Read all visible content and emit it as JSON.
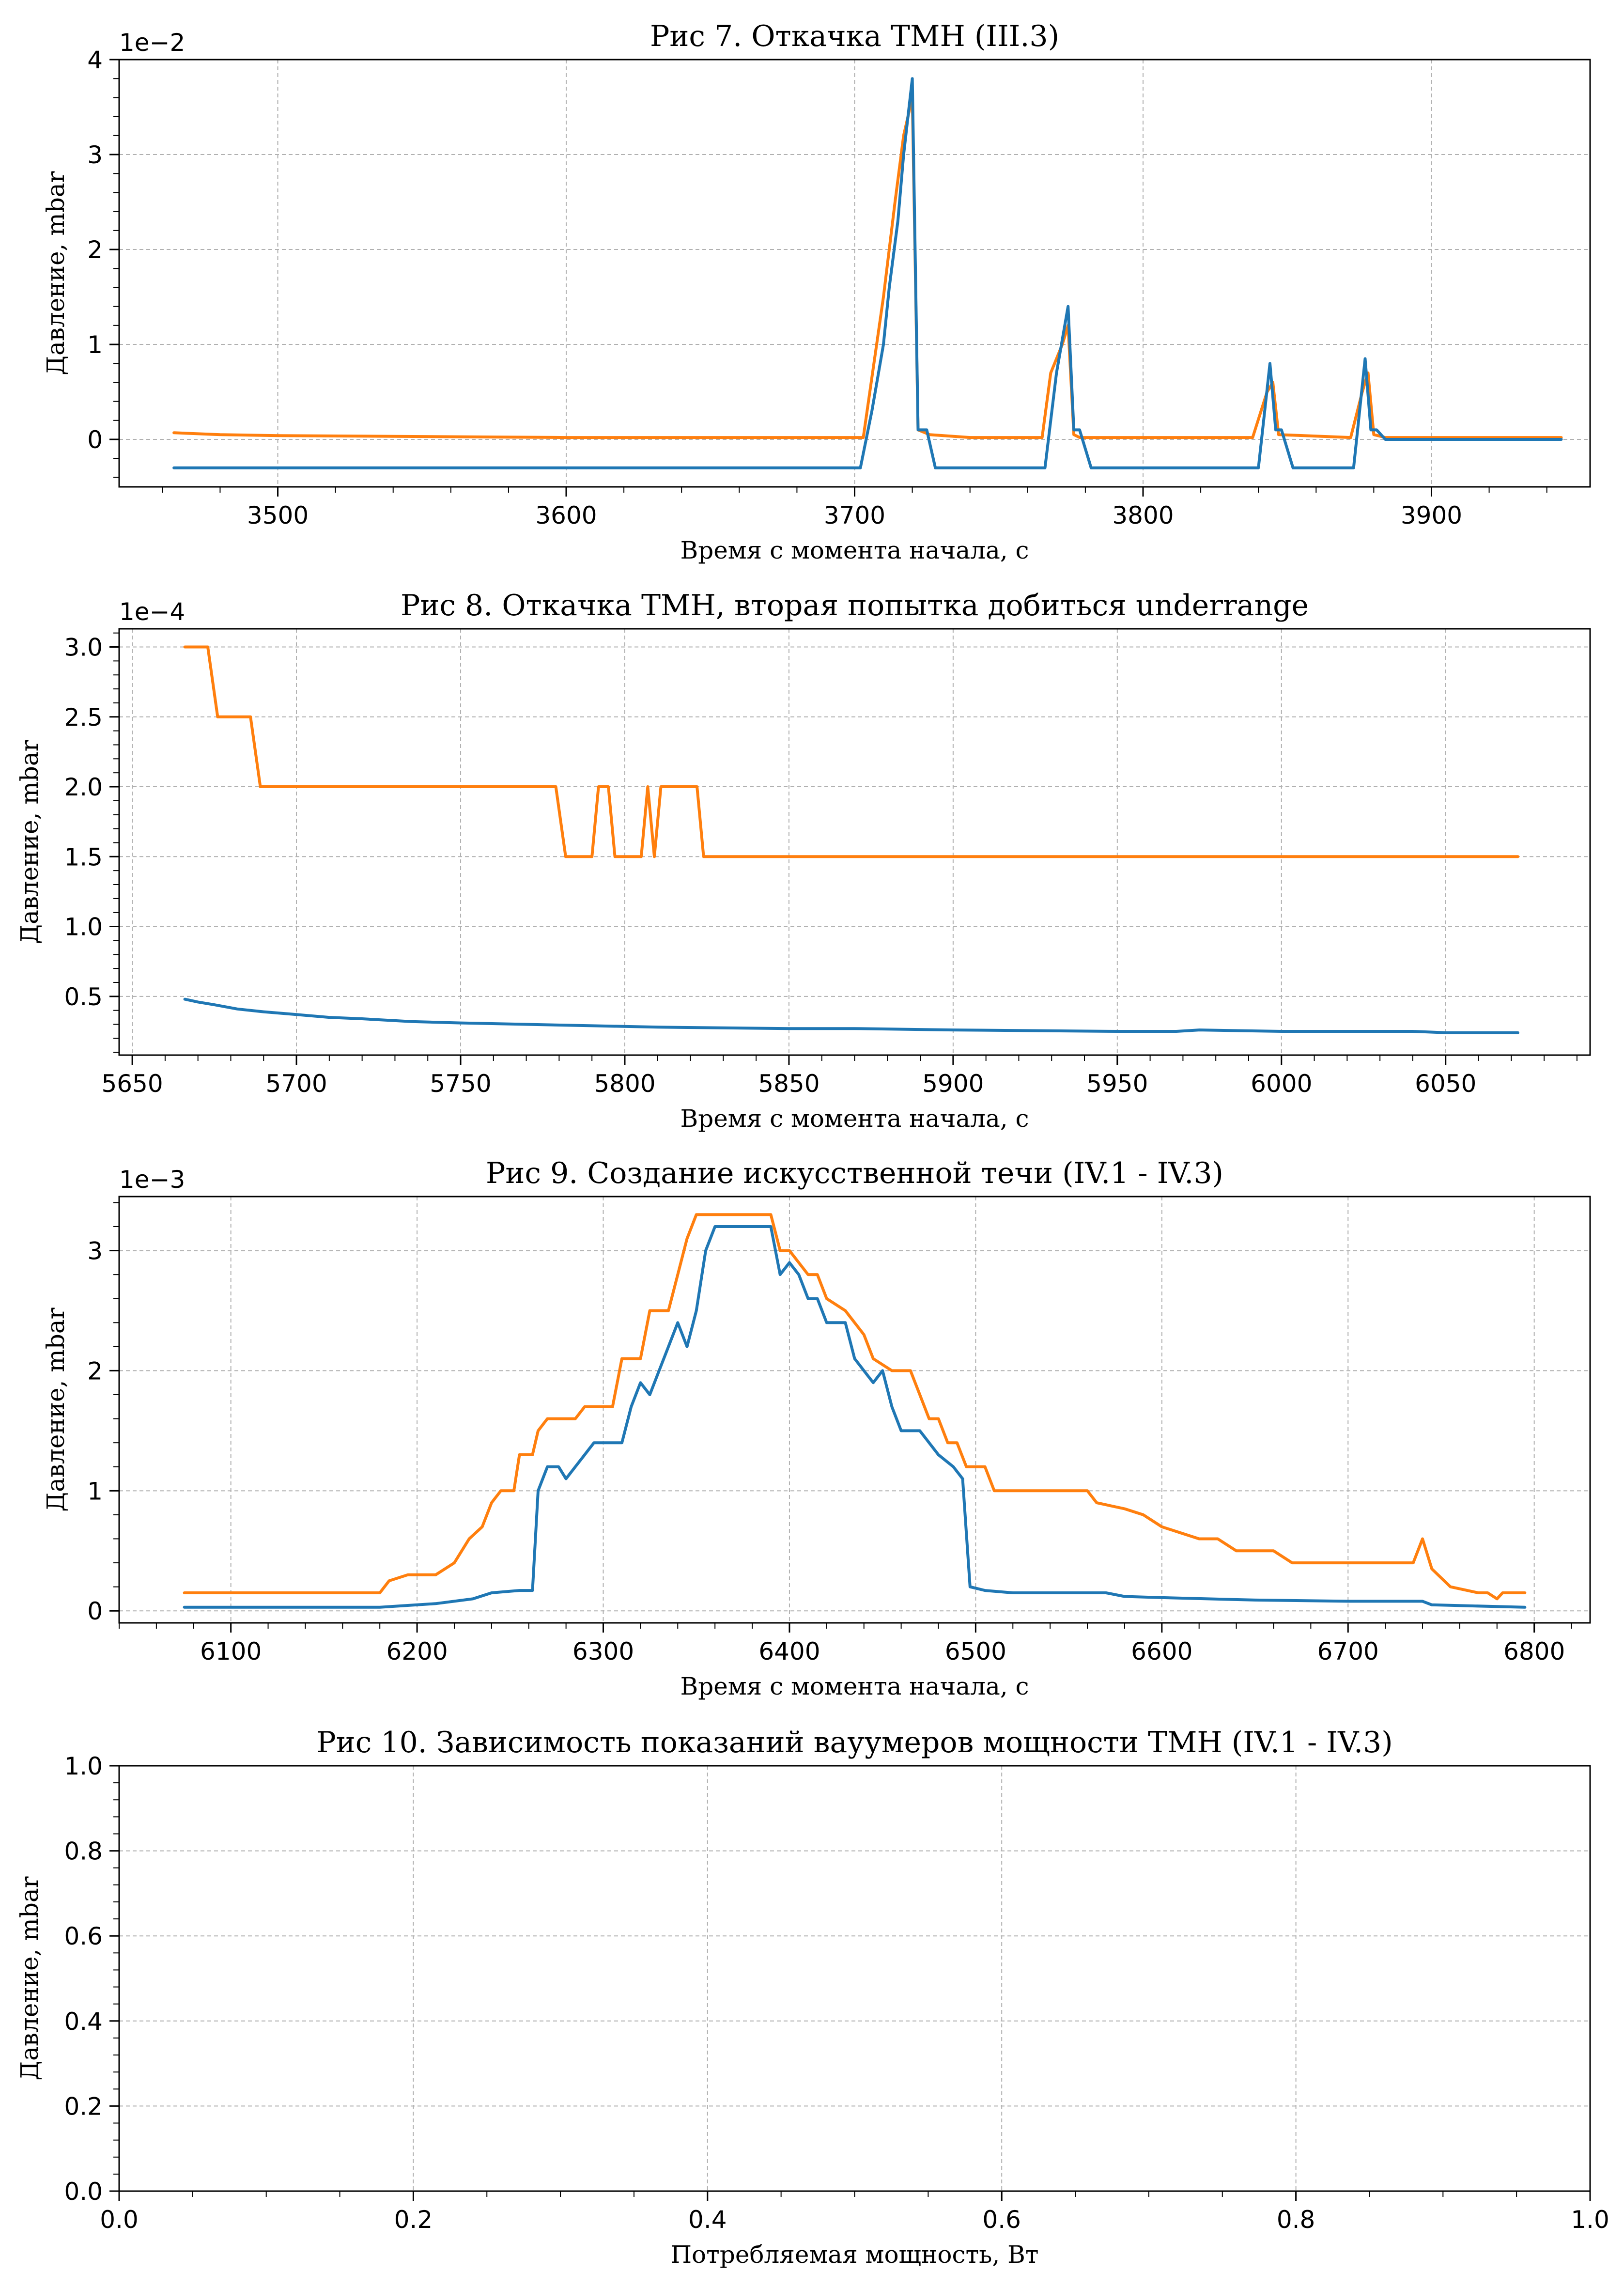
{
  "colors": {
    "series_blue": "#1f77b4",
    "series_orange": "#ff7f0e",
    "grid": "#b0b0b0"
  },
  "chart_data": [
    {
      "type": "line",
      "title": "Рис 7. Откачка ТМН (III.3)",
      "xlabel": "Время с момента начала, с",
      "ylabel": "Давление, mbar",
      "offset_text": "1e−2",
      "y_multiplier": 0.01,
      "xlim": [
        3445,
        3955
      ],
      "ylim": [
        -0.5,
        4
      ],
      "xticks": [
        3500,
        3600,
        3700,
        3800,
        3900
      ],
      "yticks": [
        0,
        1,
        2,
        3,
        4
      ],
      "x_minor": 20,
      "y_minor": 0.2,
      "grid": true,
      "series": [
        {
          "color": "#ff7f0e",
          "points": [
            [
              3464,
              0.07
            ],
            [
              3480,
              0.05
            ],
            [
              3500,
              0.04
            ],
            [
              3550,
              0.03
            ],
            [
              3600,
              0.02
            ],
            [
              3650,
              0.02
            ],
            [
              3700,
              0.02
            ],
            [
              3703,
              0.02
            ],
            [
              3710,
              1.5
            ],
            [
              3714,
              2.5
            ],
            [
              3717,
              3.2
            ],
            [
              3720,
              3.6
            ],
            [
              3722,
              0.1
            ],
            [
              3726,
              0.05
            ],
            [
              3740,
              0.02
            ],
            [
              3765,
              0.02
            ],
            [
              3768,
              0.7
            ],
            [
              3772,
              1.0
            ],
            [
              3774,
              1.2
            ],
            [
              3776,
              0.05
            ],
            [
              3778,
              0.02
            ],
            [
              3838,
              0.02
            ],
            [
              3843,
              0.5
            ],
            [
              3845,
              0.6
            ],
            [
              3847,
              0.05
            ],
            [
              3872,
              0.02
            ],
            [
              3876,
              0.5
            ],
            [
              3878,
              0.7
            ],
            [
              3880,
              0.05
            ],
            [
              3884,
              0.02
            ],
            [
              3945,
              0.02
            ]
          ]
        },
        {
          "color": "#1f77b4",
          "points": [
            [
              3464,
              -0.3
            ],
            [
              3702,
              -0.3
            ],
            [
              3706,
              0.3
            ],
            [
              3710,
              1.0
            ],
            [
              3712,
              1.6
            ],
            [
              3715,
              2.3
            ],
            [
              3717,
              3.0
            ],
            [
              3720,
              3.8
            ],
            [
              3722,
              0.1
            ],
            [
              3725,
              0.1
            ],
            [
              3728,
              -0.3
            ],
            [
              3766,
              -0.3
            ],
            [
              3770,
              0.7
            ],
            [
              3774,
              1.4
            ],
            [
              3776,
              0.1
            ],
            [
              3778,
              0.1
            ],
            [
              3782,
              -0.3
            ],
            [
              3840,
              -0.3
            ],
            [
              3844,
              0.8
            ],
            [
              3846,
              0.1
            ],
            [
              3848,
              0.1
            ],
            [
              3852,
              -0.3
            ],
            [
              3873,
              -0.3
            ],
            [
              3877,
              0.85
            ],
            [
              3879,
              0.1
            ],
            [
              3881,
              0.1
            ],
            [
              3884,
              0.0
            ],
            [
              3945,
              0.0
            ]
          ]
        }
      ]
    },
    {
      "type": "line",
      "title": "Рис 8. Откачка ТМН, вторая попытка добиться underrange",
      "xlabel": "Время с момента начала, с",
      "ylabel": "Давление, mbar",
      "offset_text": "1e−4",
      "y_multiplier": 0.0001,
      "xlim": [
        5646,
        5094
      ],
      "xlim_note": "",
      "ylim": [
        0.08,
        3.13
      ],
      "xticks": [
        5650,
        5700,
        5750,
        5800,
        5850,
        5900,
        5950,
        6000,
        6050
      ],
      "xtick_labels": [
        "5650",
        "5700",
        "5750",
        "5800",
        "5850",
        "5900",
        "5950",
        "6000",
        "6050"
      ],
      "yticks": [
        0.5,
        1.0,
        1.5,
        2.0,
        2.5,
        3.0
      ],
      "ytick_labels": [
        "0.5",
        "1.0",
        "1.5",
        "2.0",
        "2.5",
        "3.0"
      ],
      "x_minor": 10,
      "y_minor": 0.1,
      "grid": true,
      "series": [
        {
          "color": "#ff7f0e",
          "points": [
            [
              5666,
              3.0
            ],
            [
              5673,
              3.0
            ],
            [
              5676,
              2.5
            ],
            [
              5686,
              2.5
            ],
            [
              5689,
              2.0
            ],
            [
              5779,
              2.0
            ],
            [
              5782,
              1.5
            ],
            [
              5790,
              1.5
            ],
            [
              5792,
              2.0
            ],
            [
              5795,
              2.0
            ],
            [
              5797,
              1.5
            ],
            [
              5805,
              1.5
            ],
            [
              5807,
              2.0
            ],
            [
              5809,
              1.5
            ],
            [
              5811,
              2.0
            ],
            [
              5822,
              2.0
            ],
            [
              5824,
              1.5
            ],
            [
              6072,
              1.5
            ]
          ]
        },
        {
          "color": "#1f77b4",
          "points": [
            [
              5666,
              0.48
            ],
            [
              5670,
              0.46
            ],
            [
              5675,
              0.44
            ],
            [
              5682,
              0.41
            ],
            [
              5690,
              0.39
            ],
            [
              5700,
              0.37
            ],
            [
              5710,
              0.35
            ],
            [
              5720,
              0.34
            ],
            [
              5735,
              0.32
            ],
            [
              5750,
              0.31
            ],
            [
              5770,
              0.3
            ],
            [
              5790,
              0.29
            ],
            [
              5810,
              0.28
            ],
            [
              5850,
              0.27
            ],
            [
              5870,
              0.27
            ],
            [
              5900,
              0.26
            ],
            [
              5950,
              0.25
            ],
            [
              5968,
              0.25
            ],
            [
              5975,
              0.26
            ],
            [
              6000,
              0.25
            ],
            [
              6040,
              0.25
            ],
            [
              6050,
              0.24
            ],
            [
              6072,
              0.24
            ]
          ]
        }
      ]
    },
    {
      "type": "line",
      "title": "Рис 9. Создание искусственной течи (IV.1 - IV.3)",
      "xlabel": "Время с момента начала, с",
      "ylabel": "Давление, mbar",
      "offset_text": "1e−3",
      "y_multiplier": 0.001,
      "xlim": [
        6040,
        6830
      ],
      "ylim": [
        -0.1,
        3.45
      ],
      "xticks": [
        6100,
        6200,
        6300,
        6400,
        6500,
        6600,
        6700,
        6800
      ],
      "yticks": [
        0,
        1,
        2,
        3
      ],
      "x_minor": 20,
      "y_minor": 0.2,
      "grid": true,
      "series": [
        {
          "color": "#ff7f0e",
          "points": [
            [
              6075,
              0.15
            ],
            [
              6180,
              0.15
            ],
            [
              6185,
              0.25
            ],
            [
              6195,
              0.3
            ],
            [
              6210,
              0.3
            ],
            [
              6220,
              0.4
            ],
            [
              6228,
              0.6
            ],
            [
              6235,
              0.7
            ],
            [
              6240,
              0.9
            ],
            [
              6245,
              1.0
            ],
            [
              6252,
              1.0
            ],
            [
              6255,
              1.3
            ],
            [
              6262,
              1.3
            ],
            [
              6265,
              1.5
            ],
            [
              6270,
              1.6
            ],
            [
              6285,
              1.6
            ],
            [
              6290,
              1.7
            ],
            [
              6305,
              1.7
            ],
            [
              6310,
              2.1
            ],
            [
              6320,
              2.1
            ],
            [
              6325,
              2.5
            ],
            [
              6335,
              2.5
            ],
            [
              6340,
              2.8
            ],
            [
              6345,
              3.1
            ],
            [
              6350,
              3.3
            ],
            [
              6390,
              3.3
            ],
            [
              6395,
              3.0
            ],
            [
              6400,
              3.0
            ],
            [
              6405,
              2.9
            ],
            [
              6410,
              2.8
            ],
            [
              6415,
              2.8
            ],
            [
              6420,
              2.6
            ],
            [
              6430,
              2.5
            ],
            [
              6440,
              2.3
            ],
            [
              6445,
              2.1
            ],
            [
              6455,
              2.0
            ],
            [
              6465,
              2.0
            ],
            [
              6470,
              1.8
            ],
            [
              6475,
              1.6
            ],
            [
              6480,
              1.6
            ],
            [
              6485,
              1.4
            ],
            [
              6490,
              1.4
            ],
            [
              6495,
              1.2
            ],
            [
              6505,
              1.2
            ],
            [
              6510,
              1.0
            ],
            [
              6560,
              1.0
            ],
            [
              6565,
              0.9
            ],
            [
              6580,
              0.85
            ],
            [
              6590,
              0.8
            ],
            [
              6600,
              0.7
            ],
            [
              6610,
              0.65
            ],
            [
              6620,
              0.6
            ],
            [
              6630,
              0.6
            ],
            [
              6640,
              0.5
            ],
            [
              6660,
              0.5
            ],
            [
              6670,
              0.4
            ],
            [
              6735,
              0.4
            ],
            [
              6740,
              0.6
            ],
            [
              6745,
              0.35
            ],
            [
              6755,
              0.2
            ],
            [
              6770,
              0.15
            ],
            [
              6775,
              0.15
            ],
            [
              6780,
              0.1
            ],
            [
              6783,
              0.15
            ],
            [
              6795,
              0.15
            ]
          ]
        },
        {
          "color": "#1f77b4",
          "points": [
            [
              6075,
              0.03
            ],
            [
              6180,
              0.03
            ],
            [
              6210,
              0.06
            ],
            [
              6230,
              0.1
            ],
            [
              6240,
              0.15
            ],
            [
              6255,
              0.17
            ],
            [
              6262,
              0.17
            ],
            [
              6265,
              1.0
            ],
            [
              6270,
              1.2
            ],
            [
              6276,
              1.2
            ],
            [
              6280,
              1.1
            ],
            [
              6285,
              1.2
            ],
            [
              6290,
              1.3
            ],
            [
              6295,
              1.4
            ],
            [
              6310,
              1.4
            ],
            [
              6315,
              1.7
            ],
            [
              6320,
              1.9
            ],
            [
              6325,
              1.8
            ],
            [
              6330,
              2.0
            ],
            [
              6335,
              2.2
            ],
            [
              6340,
              2.4
            ],
            [
              6345,
              2.2
            ],
            [
              6350,
              2.5
            ],
            [
              6355,
              3.0
            ],
            [
              6360,
              3.2
            ],
            [
              6390,
              3.2
            ],
            [
              6395,
              2.8
            ],
            [
              6400,
              2.9
            ],
            [
              6405,
              2.8
            ],
            [
              6410,
              2.6
            ],
            [
              6415,
              2.6
            ],
            [
              6420,
              2.4
            ],
            [
              6430,
              2.4
            ],
            [
              6435,
              2.1
            ],
            [
              6440,
              2.0
            ],
            [
              6445,
              1.9
            ],
            [
              6450,
              2.0
            ],
            [
              6455,
              1.7
            ],
            [
              6460,
              1.5
            ],
            [
              6470,
              1.5
            ],
            [
              6475,
              1.4
            ],
            [
              6480,
              1.3
            ],
            [
              6488,
              1.2
            ],
            [
              6493,
              1.1
            ],
            [
              6497,
              0.2
            ],
            [
              6505,
              0.17
            ],
            [
              6520,
              0.15
            ],
            [
              6570,
              0.15
            ],
            [
              6580,
              0.12
            ],
            [
              6600,
              0.11
            ],
            [
              6650,
              0.09
            ],
            [
              6700,
              0.08
            ],
            [
              6740,
              0.08
            ],
            [
              6745,
              0.05
            ],
            [
              6795,
              0.03
            ]
          ]
        }
      ]
    },
    {
      "type": "line",
      "title": "Рис 10. Зависимость показаний вауумеров мощности ТМН (IV.1 - IV.3)",
      "xlabel": "Потребляемая мощность, Вт",
      "ylabel": "Давление, mbar",
      "offset_text": "",
      "xlim": [
        0,
        1
      ],
      "ylim": [
        0,
        1
      ],
      "xticks": [
        0.0,
        0.2,
        0.4,
        0.6,
        0.8,
        1.0
      ],
      "xtick_labels": [
        "0.0",
        "0.2",
        "0.4",
        "0.6",
        "0.8",
        "1.0"
      ],
      "yticks": [
        0.0,
        0.2,
        0.4,
        0.6,
        0.8,
        1.0
      ],
      "ytick_labels": [
        "0.0",
        "0.2",
        "0.4",
        "0.6",
        "0.8",
        "1.0"
      ],
      "x_minor": 0.05,
      "y_minor": 0.04,
      "grid": true,
      "series": []
    }
  ]
}
